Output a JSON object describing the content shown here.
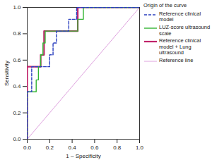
{
  "chart_data": {
    "type": "line",
    "x_label": "1 – Specificity",
    "y_label": "Sensitivity",
    "legend_title": "Origin of the curve",
    "legend": "right",
    "grid": false,
    "xlim": [
      0,
      1
    ],
    "ylim": [
      0,
      1
    ],
    "xticks": [
      {
        "value": 0,
        "label": "0.0"
      },
      0.2,
      0.4,
      0.6,
      0.8,
      {
        "value": 1,
        "label": "1.0"
      }
    ],
    "yticks": [
      {
        "value": 0,
        "label": "0.0"
      },
      0.2,
      0.4,
      0.6,
      0.8,
      {
        "value": 1,
        "label": "1.0"
      }
    ],
    "series": [
      {
        "name": "Reference clinical model",
        "color": "#2a3fbf",
        "line_style": "dashed",
        "x": [
          0,
          0,
          0.04,
          0.04,
          0.2,
          0.2,
          0.23,
          0.23,
          0.26,
          0.26,
          0.28,
          0.28,
          0.37,
          0.37,
          0.44,
          0.44,
          1
        ],
        "values": [
          0,
          0.36,
          0.36,
          0.55,
          0.55,
          0.64,
          0.64,
          0.73,
          0.73,
          0.82,
          0.82,
          0.82,
          0.82,
          0.91,
          0.91,
          1,
          1
        ]
      },
      {
        "name": "LUZ-score ultrasound scale",
        "color": "#33b533",
        "line_style": "solid",
        "x": [
          0,
          0,
          0.08,
          0.08,
          0.1,
          0.1,
          0.12,
          0.12,
          0.14,
          0.14,
          0.16,
          0.16,
          0.45,
          0.45,
          0.5,
          0.5,
          1
        ],
        "values": [
          0,
          0.36,
          0.36,
          0.45,
          0.45,
          0.55,
          0.55,
          0.64,
          0.64,
          0.73,
          0.73,
          0.82,
          0.82,
          0.91,
          0.91,
          1,
          1
        ]
      },
      {
        "name": "Reference clinical model + Lung ultrasound",
        "color": "#c0226a",
        "line_style": "solid",
        "x": [
          0,
          0,
          0.12,
          0.12,
          0.15,
          0.15,
          0.45,
          0.45,
          1
        ],
        "values": [
          0,
          0.55,
          0.55,
          0.64,
          0.64,
          0.82,
          0.82,
          1,
          1
        ]
      },
      {
        "name": "Reference line",
        "color": "#d58ad5",
        "line_style": "solid",
        "x": [
          0,
          1
        ],
        "values": [
          0,
          1
        ]
      }
    ]
  }
}
